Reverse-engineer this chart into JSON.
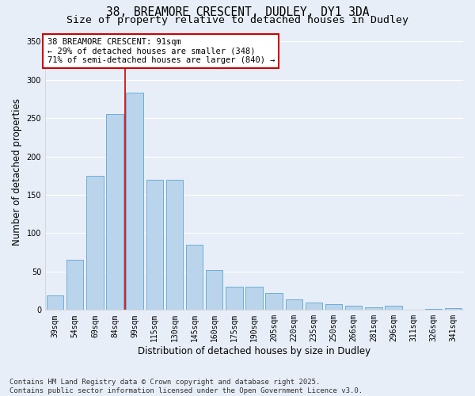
{
  "title_line1": "38, BREAMORE CRESCENT, DUDLEY, DY1 3DA",
  "title_line2": "Size of property relative to detached houses in Dudley",
  "xlabel": "Distribution of detached houses by size in Dudley",
  "ylabel": "Number of detached properties",
  "categories": [
    "39sqm",
    "54sqm",
    "69sqm",
    "84sqm",
    "99sqm",
    "115sqm",
    "130sqm",
    "145sqm",
    "160sqm",
    "175sqm",
    "190sqm",
    "205sqm",
    "220sqm",
    "235sqm",
    "250sqm",
    "266sqm",
    "281sqm",
    "296sqm",
    "311sqm",
    "326sqm",
    "341sqm"
  ],
  "values": [
    19,
    65,
    175,
    255,
    283,
    170,
    170,
    85,
    52,
    30,
    30,
    22,
    14,
    10,
    8,
    5,
    3,
    5,
    0,
    1,
    2
  ],
  "bar_color": "#bad4ec",
  "bar_edge_color": "#6aaed6",
  "vline_x": 3.5,
  "vline_color": "#cc0000",
  "annotation_text": "38 BREAMORE CRESCENT: 91sqm\n← 29% of detached houses are smaller (348)\n71% of semi-detached houses are larger (840) →",
  "annotation_box_color": "#ffffff",
  "annotation_box_edge": "#cc0000",
  "ylim": [
    0,
    360
  ],
  "yticks": [
    0,
    50,
    100,
    150,
    200,
    250,
    300,
    350
  ],
  "background_color": "#e8eef8",
  "grid_color": "#ffffff",
  "footer_line1": "Contains HM Land Registry data © Crown copyright and database right 2025.",
  "footer_line2": "Contains public sector information licensed under the Open Government Licence v3.0.",
  "title_fontsize": 10.5,
  "subtitle_fontsize": 9.5,
  "axis_label_fontsize": 8.5,
  "tick_fontsize": 7,
  "annotation_fontsize": 7.5,
  "footer_fontsize": 6.5
}
